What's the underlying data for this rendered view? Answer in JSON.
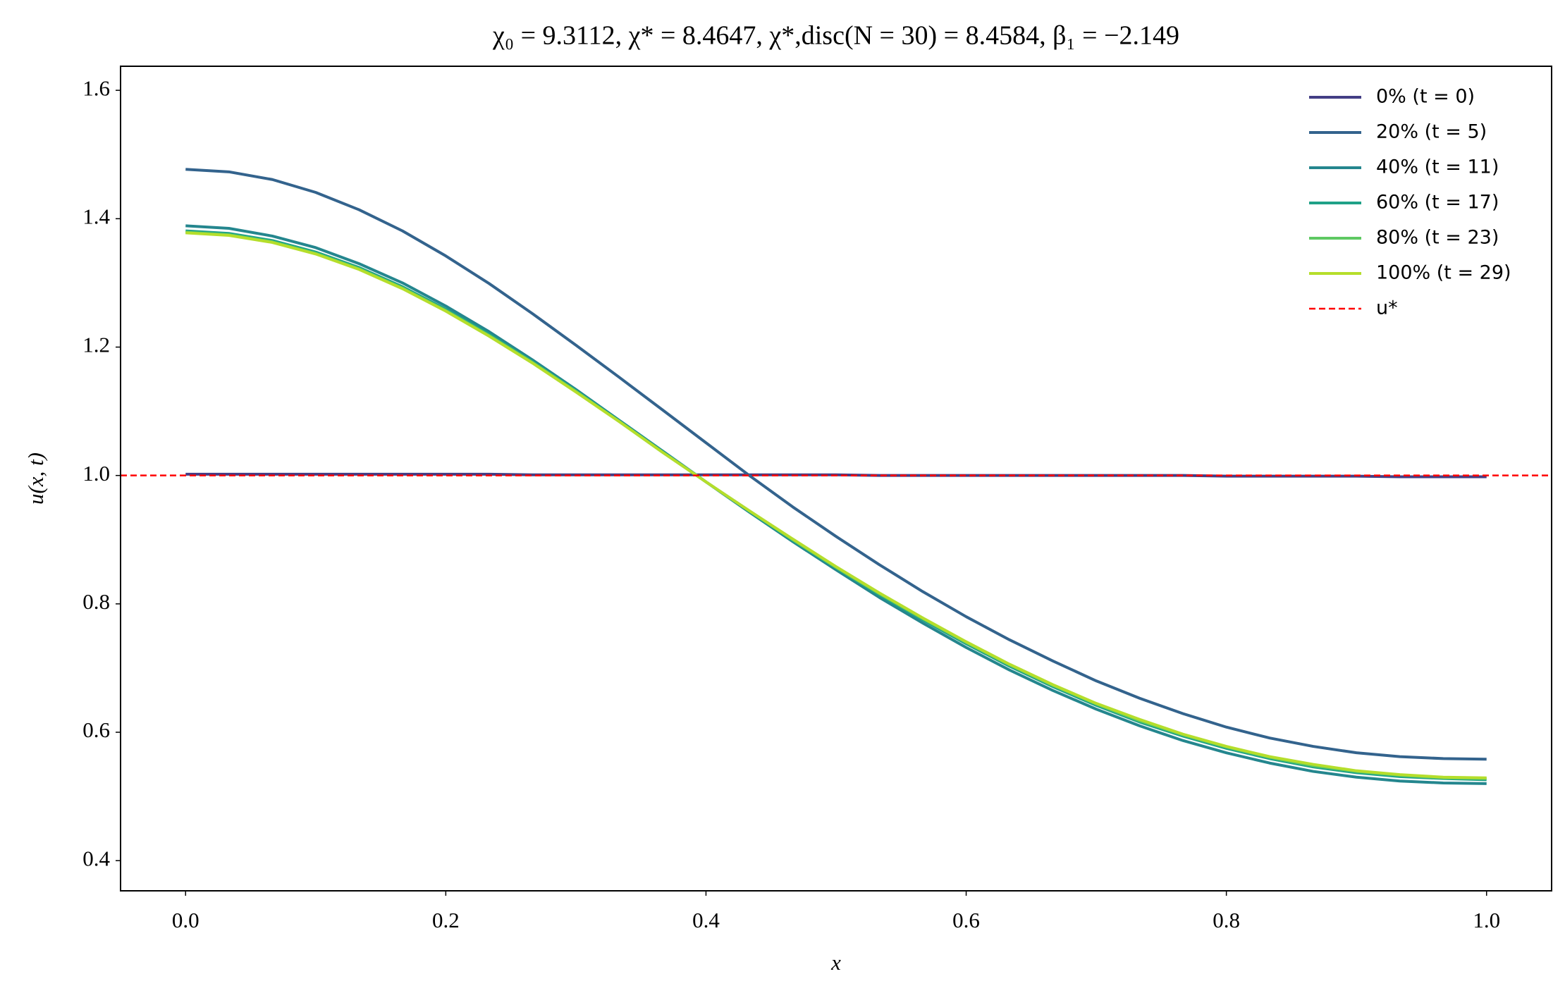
{
  "chart_data": {
    "type": "line",
    "title": "χ₀ = 9.3112,  χ* = 8.4647,  χ*,disc(N = 30) = 8.4584,  β₁ = −2.149",
    "x_label": "x",
    "y_label": "u(x, t)",
    "xlim": [
      -0.05,
      1.05
    ],
    "ylim": [
      0.353,
      1.6375
    ],
    "xticks": [
      {
        "value": 0,
        "label": "0.0"
      },
      0.2,
      0.4,
      0.6,
      0.8,
      {
        "value": 1,
        "label": "1.0"
      }
    ],
    "yticks": [
      0.4,
      0.6,
      0.8,
      {
        "value": 1,
        "label": "1.0"
      },
      1.2,
      1.4,
      1.6
    ],
    "legend": "upper right",
    "grid": false,
    "x": [
      0,
      0.0333,
      0.0667,
      0.1,
      0.1333,
      0.1667,
      0.2,
      0.2333,
      0.2667,
      0.3,
      0.3333,
      0.3667,
      0.4,
      0.4333,
      0.4667,
      0.5,
      0.5333,
      0.5667,
      0.6,
      0.6333,
      0.6667,
      0.7,
      0.7333,
      0.7667,
      0.8,
      0.8333,
      0.8667,
      0.9,
      0.9333,
      0.9667,
      1
    ],
    "series": [
      {
        "name": "0% (t = 0)",
        "color": "#433e85",
        "values": [
          1.002,
          1.002,
          1.002,
          1.002,
          1.002,
          1.002,
          1.002,
          1.002,
          1.001,
          1.001,
          1.001,
          1.001,
          1.001,
          1.001,
          1.001,
          1.001,
          1.0,
          1.0,
          1.0,
          1.0,
          1.0,
          1.0,
          1.0,
          1.0,
          0.999,
          0.999,
          0.999,
          0.999,
          0.998,
          0.998,
          0.998
        ]
      },
      {
        "name": "20% (t = 5)",
        "color": "#33638d",
        "values": [
          1.477,
          1.473,
          1.461,
          1.441,
          1.414,
          1.381,
          1.342,
          1.299,
          1.252,
          1.203,
          1.153,
          1.102,
          1.051,
          1.0,
          0.951,
          0.905,
          0.861,
          0.819,
          0.78,
          0.744,
          0.711,
          0.68,
          0.653,
          0.629,
          0.608,
          0.591,
          0.578,
          0.568,
          0.562,
          0.559,
          0.558
        ]
      },
      {
        "name": "40% (t = 11)",
        "color": "#24868e",
        "values": [
          1.389,
          1.385,
          1.373,
          1.355,
          1.33,
          1.3,
          1.264,
          1.224,
          1.18,
          1.134,
          1.086,
          1.038,
          0.99,
          0.943,
          0.897,
          0.853,
          0.81,
          0.77,
          0.732,
          0.697,
          0.665,
          0.636,
          0.61,
          0.587,
          0.568,
          0.552,
          0.539,
          0.53,
          0.524,
          0.521,
          0.52
        ]
      },
      {
        "name": "60% (t = 17)",
        "color": "#1fa187",
        "values": [
          1.381,
          1.377,
          1.366,
          1.348,
          1.324,
          1.294,
          1.259,
          1.22,
          1.177,
          1.132,
          1.085,
          1.037,
          0.99,
          0.944,
          0.899,
          0.856,
          0.814,
          0.775,
          0.738,
          0.703,
          0.671,
          0.642,
          0.616,
          0.594,
          0.575,
          0.559,
          0.546,
          0.537,
          0.531,
          0.528,
          0.526
        ]
      },
      {
        "name": "80% (t = 23)",
        "color": "#5ec962",
        "values": [
          1.379,
          1.375,
          1.364,
          1.346,
          1.322,
          1.292,
          1.257,
          1.218,
          1.176,
          1.131,
          1.084,
          1.036,
          0.99,
          0.945,
          0.9,
          0.857,
          0.816,
          0.777,
          0.74,
          0.705,
          0.673,
          0.644,
          0.618,
          0.596,
          0.577,
          0.561,
          0.548,
          0.539,
          0.533,
          0.529,
          0.528
        ]
      },
      {
        "name": "100% (t = 29)",
        "color": "#b5de2b",
        "values": [
          1.378,
          1.374,
          1.363,
          1.345,
          1.321,
          1.291,
          1.256,
          1.217,
          1.175,
          1.13,
          1.084,
          1.036,
          0.99,
          0.945,
          0.901,
          0.858,
          0.817,
          0.778,
          0.741,
          0.706,
          0.674,
          0.645,
          0.62,
          0.597,
          0.578,
          0.562,
          0.55,
          0.54,
          0.534,
          0.53,
          0.529
        ]
      }
    ],
    "reference_line": {
      "name": "u*",
      "value": 1,
      "color": "#ff0000",
      "linestyle": "dashed"
    }
  }
}
